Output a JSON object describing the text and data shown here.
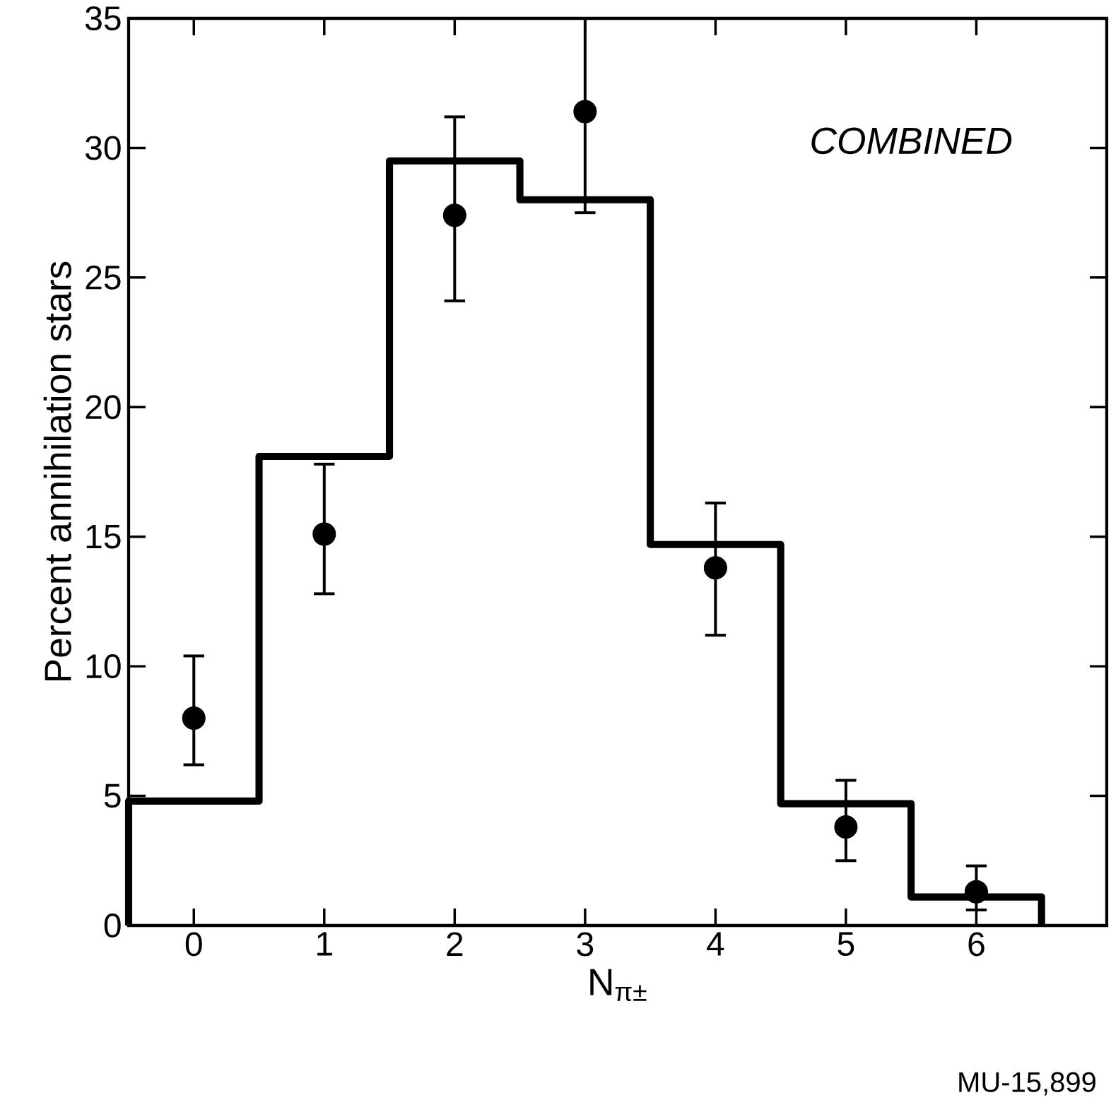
{
  "chart_data": {
    "type": "histogram",
    "xlabel": "N$_{π±}$",
    "ylabel": "Percent annihilation stars",
    "annotations": [
      "COMBINED",
      "MU-15,899"
    ],
    "xlim": [
      -0.5,
      7
    ],
    "ylim": [
      0,
      35
    ],
    "xticks": [
      0,
      1,
      2,
      3,
      4,
      5,
      6
    ],
    "yticks": [
      0,
      5,
      10,
      15,
      20,
      25,
      30,
      35
    ],
    "series": [
      {
        "color": "#000000",
        "line_style": "solid",
        "bins": [
          -0.5,
          0.5,
          1.5,
          2.5,
          3.5,
          4.5,
          5.5,
          6.5
        ],
        "values": [
          4.8,
          18.1,
          29.5,
          28.0,
          14.7,
          4.7,
          1.1
        ]
      },
      {
        "type": "scatter",
        "color": "#000000",
        "marker": "circle",
        "x": [
          0,
          1,
          2,
          3,
          4,
          5,
          6
        ],
        "values": [
          8.0,
          15.1,
          27.4,
          31.4,
          13.8,
          3.8,
          1.3
        ],
        "errors": [
          [
            6.2,
            10.4
          ],
          [
            12.8,
            17.8
          ],
          [
            24.1,
            31.2
          ],
          [
            27.5,
            35
          ],
          [
            11.2,
            16.3
          ],
          [
            2.5,
            5.6
          ],
          [
            0.6,
            2.3
          ]
        ]
      }
    ]
  }
}
